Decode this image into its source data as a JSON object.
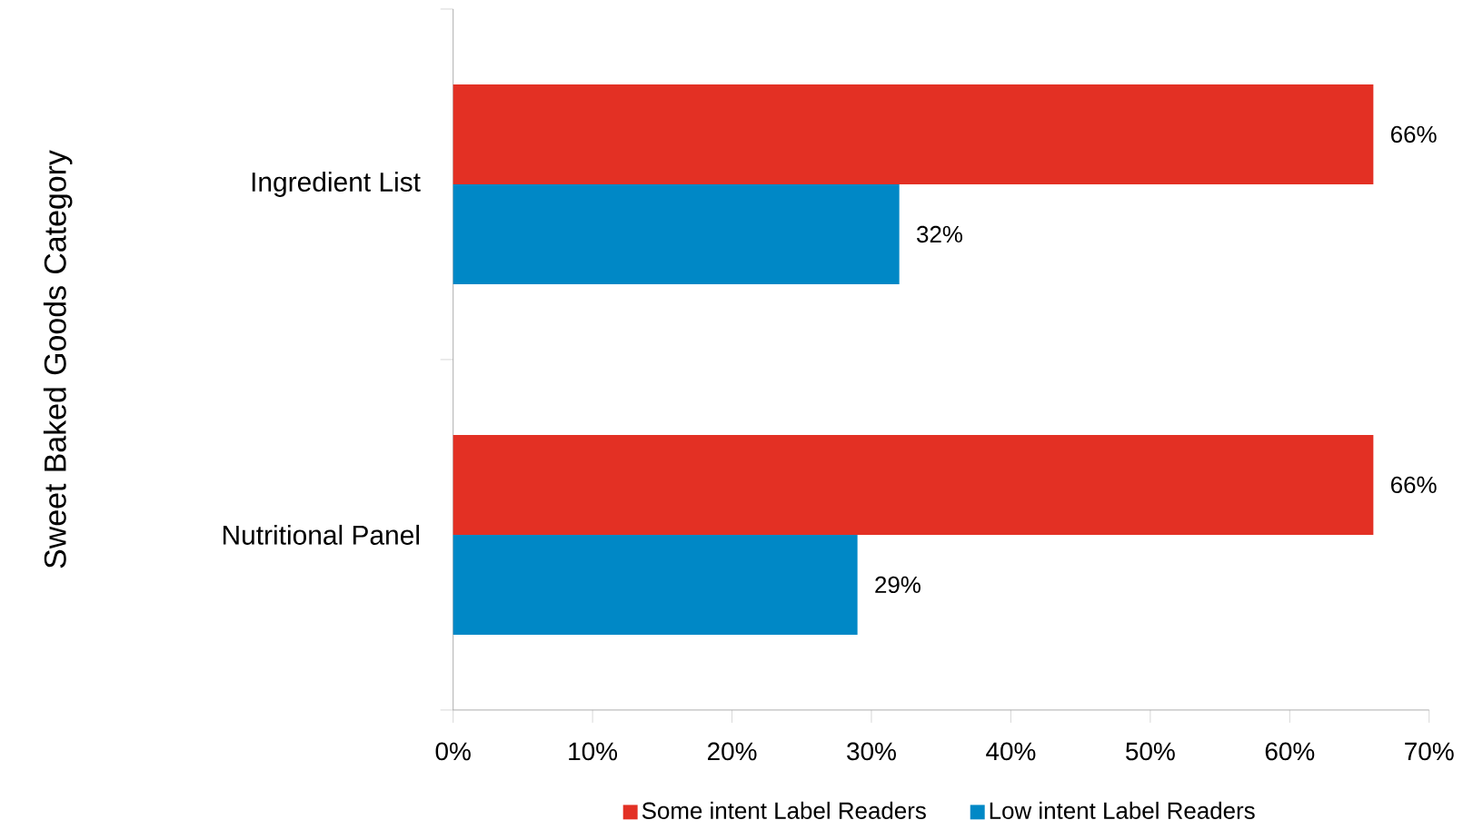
{
  "chart_data": {
    "type": "bar",
    "orientation": "horizontal",
    "ylabel": "Sweet Baked Goods Category",
    "categories": [
      "Ingredient List",
      "Nutritional Panel"
    ],
    "series": [
      {
        "name": "Some intent Label Readers",
        "color": "#e33024",
        "values": [
          66,
          66
        ],
        "value_labels": [
          "66%",
          "66%"
        ]
      },
      {
        "name": "Low intent Label Readers",
        "color": "#0088c6",
        "values": [
          32,
          29
        ],
        "value_labels": [
          "32%",
          "29%"
        ]
      }
    ],
    "xlim": [
      0,
      70
    ],
    "xticks": [
      {
        "value": 0,
        "label": "0%"
      },
      {
        "value": 10,
        "label": "10%"
      },
      {
        "value": 20,
        "label": "20%"
      },
      {
        "value": 30,
        "label": "30%"
      },
      {
        "value": 40,
        "label": "40%"
      },
      {
        "value": 50,
        "label": "50%"
      },
      {
        "value": 60,
        "label": "60%"
      },
      {
        "value": 70,
        "label": "70%"
      }
    ],
    "grid": false,
    "legend": "bottom"
  }
}
